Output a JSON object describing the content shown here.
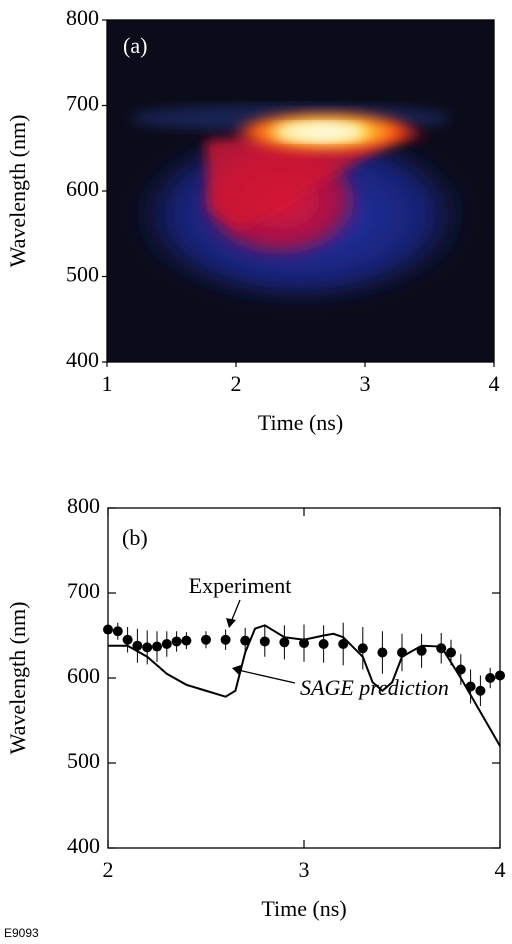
{
  "chart_data": [
    {
      "type": "image",
      "title": "(a)",
      "xlabel": "Time (ns)",
      "ylabel": "Wavelength (nm)",
      "xlim": [
        1,
        4
      ],
      "ylim": [
        400,
        800
      ],
      "xticks": [
        1,
        2,
        3,
        4
      ],
      "yticks": [
        400,
        500,
        600,
        700,
        800
      ]
    },
    {
      "type": "line",
      "title": "(b)",
      "xlabel": "Time (ns)",
      "ylabel": "Wavelength (nm)",
      "xlim": [
        2,
        4
      ],
      "ylim": [
        400,
        800
      ],
      "xticks": [
        2,
        3,
        4
      ],
      "yticks": [
        400,
        500,
        600,
        700,
        800
      ],
      "annotations": [
        "Experiment",
        "SAGE prediction"
      ],
      "figure_id": "E9093",
      "series": [
        {
          "name": "Experiment",
          "color": "#000000",
          "style": "markers",
          "x": [
            2.0,
            2.05,
            2.1,
            2.15,
            2.2,
            2.25,
            2.3,
            2.35,
            2.4,
            2.5,
            2.6,
            2.7,
            2.8,
            2.9,
            3.0,
            3.1,
            3.2,
            3.3,
            3.4,
            3.5,
            3.6,
            3.7,
            3.75,
            3.8,
            3.85,
            3.9,
            3.95,
            4.0
          ],
          "values": [
            657,
            655,
            645,
            638,
            636,
            637,
            640,
            643,
            644,
            645,
            645,
            644,
            643,
            642,
            641,
            640,
            640,
            635,
            630,
            630,
            632,
            635,
            630,
            610,
            590,
            585,
            600,
            603
          ],
          "errors": [
            8,
            10,
            15,
            20,
            20,
            18,
            15,
            12,
            10,
            10,
            12,
            15,
            18,
            20,
            22,
            22,
            25,
            25,
            25,
            22,
            20,
            18,
            15,
            18,
            20,
            18,
            12,
            10
          ]
        },
        {
          "name": "SAGE prediction",
          "color": "#000000",
          "style": "line",
          "x": [
            2.0,
            2.1,
            2.2,
            2.3,
            2.4,
            2.5,
            2.6,
            2.65,
            2.7,
            2.75,
            2.8,
            2.9,
            3.0,
            3.1,
            3.15,
            3.2,
            3.3,
            3.35,
            3.4,
            3.45,
            3.5,
            3.6,
            3.7,
            3.8,
            3.9,
            4.0
          ],
          "values": [
            638,
            638,
            625,
            605,
            592,
            585,
            578,
            585,
            630,
            658,
            662,
            648,
            645,
            650,
            652,
            648,
            625,
            595,
            585,
            595,
            625,
            638,
            637,
            600,
            560,
            520
          ]
        }
      ]
    }
  ]
}
